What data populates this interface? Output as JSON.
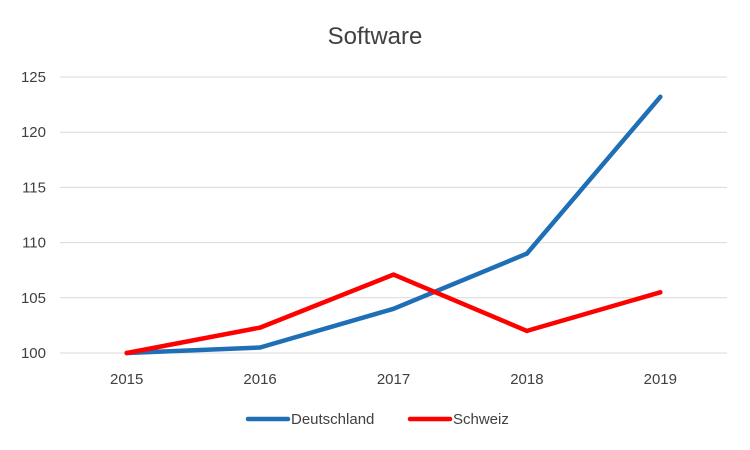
{
  "chart_data": {
    "type": "line",
    "title": "Software",
    "xlabel": "",
    "ylabel": "",
    "categories": [
      "2015",
      "2016",
      "2017",
      "2018",
      "2019"
    ],
    "ylim": [
      100,
      125
    ],
    "yticks": [
      100,
      105,
      110,
      115,
      120,
      125
    ],
    "grid": true,
    "legend_position": "bottom",
    "series": [
      {
        "name": "Deutschland",
        "color": "#1f6fb6",
        "values": [
          100,
          100.5,
          104,
          109,
          123.2
        ]
      },
      {
        "name": "Schweiz",
        "color": "#ff0000",
        "values": [
          100,
          102.3,
          107.1,
          102,
          105.5
        ]
      }
    ]
  }
}
